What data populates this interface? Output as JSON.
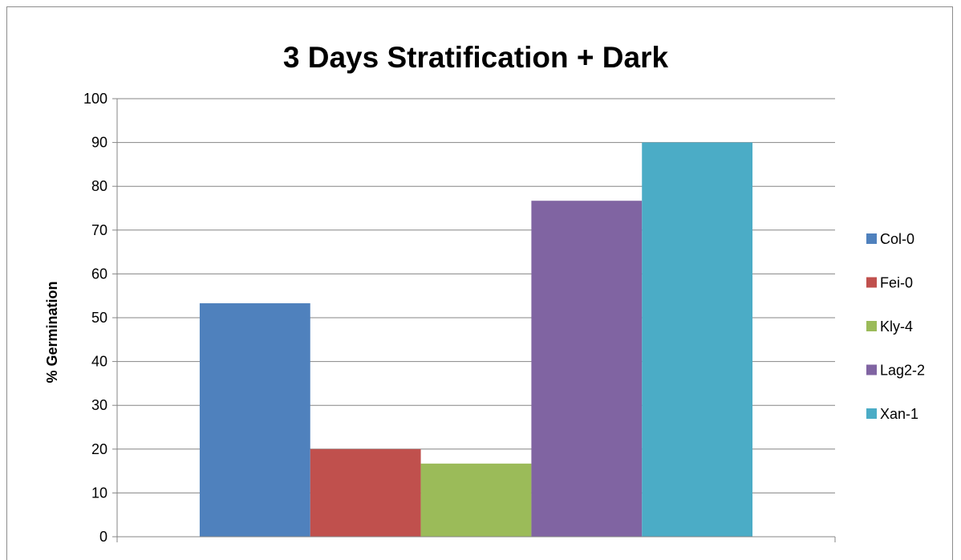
{
  "chart_data": {
    "type": "bar",
    "title": "3 Days Stratification + Dark",
    "xlabel": "",
    "ylabel": "% Germination",
    "categories": [
      ""
    ],
    "series": [
      {
        "name": "Col-0",
        "values": [
          53.3
        ],
        "color": "#4F81BD"
      },
      {
        "name": "Fei-0",
        "values": [
          20.0
        ],
        "color": "#C0504D"
      },
      {
        "name": "Kly-4",
        "values": [
          16.7
        ],
        "color": "#9BBB59"
      },
      {
        "name": "Lag2-2",
        "values": [
          76.7
        ],
        "color": "#8064A2"
      },
      {
        "name": "Xan-1",
        "values": [
          90.0
        ],
        "color": "#4BACC6"
      }
    ],
    "ylim": [
      0,
      100
    ],
    "yticks": [
      "0",
      "10",
      "20",
      "30",
      "40",
      "50",
      "60",
      "70",
      "80",
      "90",
      "100"
    ],
    "grid": true,
    "legend_position": "right"
  }
}
